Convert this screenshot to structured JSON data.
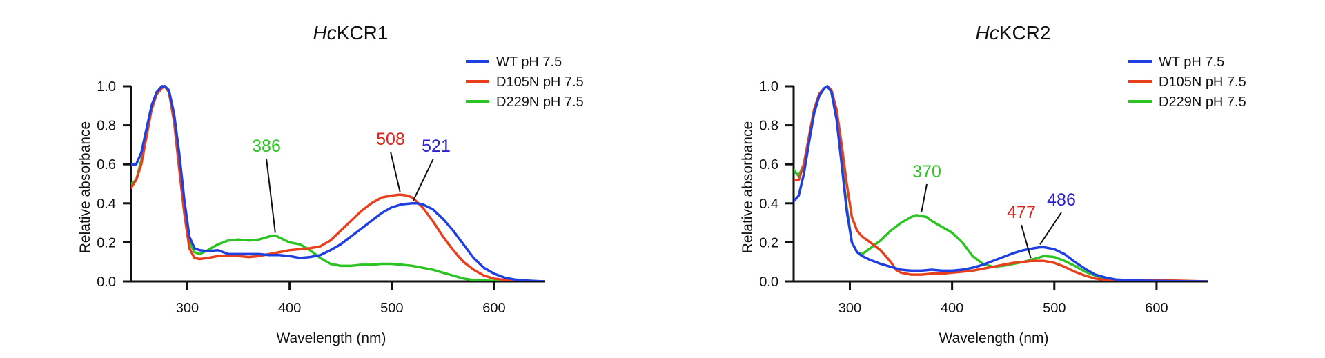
{
  "chart_data": [
    {
      "type": "line",
      "title_italic": "Hc",
      "title_rest": "KCR1",
      "xlabel": "Wavelength (nm)",
      "ylabel": "Relative absorbance",
      "xlim": [
        245,
        650
      ],
      "ylim": [
        0,
        1.0
      ],
      "xticks": [
        300,
        400,
        500,
        600
      ],
      "yticks": [
        0.0,
        0.2,
        0.4,
        0.6,
        0.8,
        1.0
      ],
      "xtick_labels": [
        "300",
        "400",
        "500",
        "600"
      ],
      "ytick_labels": [
        "0.0",
        "0.2",
        "0.4",
        "0.6",
        "0.8",
        "1.0"
      ],
      "legend_position": "top-right",
      "series": [
        {
          "name": "WT pH 7.5",
          "color": "#1f3fe0",
          "x": [
            245,
            250,
            255,
            260,
            265,
            270,
            275,
            278,
            282,
            287,
            292,
            297,
            302,
            307,
            312,
            320,
            330,
            340,
            350,
            360,
            370,
            380,
            390,
            400,
            410,
            420,
            430,
            440,
            450,
            460,
            470,
            480,
            490,
            500,
            510,
            520,
            525,
            530,
            540,
            550,
            560,
            570,
            580,
            590,
            600,
            610,
            620,
            630,
            640,
            650
          ],
          "y": [
            0.6,
            0.6,
            0.66,
            0.78,
            0.9,
            0.97,
            1.0,
            1.0,
            0.98,
            0.86,
            0.66,
            0.42,
            0.23,
            0.17,
            0.16,
            0.155,
            0.16,
            0.14,
            0.14,
            0.14,
            0.14,
            0.135,
            0.135,
            0.13,
            0.12,
            0.125,
            0.135,
            0.16,
            0.19,
            0.23,
            0.27,
            0.31,
            0.35,
            0.38,
            0.395,
            0.4,
            0.4,
            0.395,
            0.37,
            0.32,
            0.26,
            0.19,
            0.12,
            0.07,
            0.04,
            0.02,
            0.01,
            0.005,
            0.002,
            0.0
          ]
        },
        {
          "name": "D105N pH 7.5",
          "color": "#e8401c",
          "x": [
            245,
            250,
            255,
            260,
            265,
            270,
            275,
            278,
            282,
            287,
            292,
            297,
            302,
            307,
            312,
            320,
            330,
            340,
            350,
            360,
            370,
            380,
            390,
            400,
            410,
            420,
            430,
            440,
            450,
            460,
            470,
            480,
            490,
            500,
            508,
            515,
            520,
            530,
            540,
            550,
            560,
            570,
            580,
            590,
            600,
            610,
            620,
            630,
            650
          ],
          "y": [
            0.48,
            0.52,
            0.6,
            0.74,
            0.88,
            0.96,
            0.99,
            1.0,
            0.97,
            0.82,
            0.58,
            0.35,
            0.17,
            0.12,
            0.115,
            0.12,
            0.13,
            0.13,
            0.13,
            0.125,
            0.13,
            0.14,
            0.15,
            0.16,
            0.165,
            0.17,
            0.18,
            0.21,
            0.26,
            0.31,
            0.36,
            0.4,
            0.43,
            0.44,
            0.445,
            0.44,
            0.43,
            0.38,
            0.31,
            0.23,
            0.16,
            0.1,
            0.06,
            0.03,
            0.015,
            0.008,
            0.004,
            0.002,
            0.0
          ]
        },
        {
          "name": "D229N pH 7.5",
          "color": "#2cc423",
          "x": [
            245,
            250,
            255,
            260,
            265,
            270,
            275,
            278,
            282,
            287,
            292,
            297,
            302,
            307,
            312,
            320,
            330,
            340,
            350,
            360,
            370,
            380,
            386,
            390,
            400,
            410,
            420,
            430,
            440,
            450,
            460,
            470,
            480,
            490,
            500,
            510,
            520,
            530,
            540,
            550,
            560,
            570,
            580,
            600,
            620,
            650
          ],
          "y": [
            0.5,
            0.52,
            0.62,
            0.76,
            0.89,
            0.96,
            0.99,
            1.0,
            0.97,
            0.84,
            0.62,
            0.38,
            0.2,
            0.15,
            0.14,
            0.16,
            0.19,
            0.21,
            0.215,
            0.21,
            0.215,
            0.23,
            0.235,
            0.225,
            0.2,
            0.19,
            0.16,
            0.12,
            0.09,
            0.08,
            0.08,
            0.085,
            0.085,
            0.09,
            0.09,
            0.085,
            0.08,
            0.07,
            0.06,
            0.045,
            0.03,
            0.015,
            0.007,
            0.003,
            0.001,
            0.0
          ]
        }
      ],
      "annotations": [
        {
          "text": "386",
          "color": "#2cc423",
          "x": 386,
          "y": 0.235
        },
        {
          "text": "508",
          "color": "#d9261c",
          "x": 508,
          "y": 0.445
        },
        {
          "text": "521",
          "color": "#2a1fc9",
          "x": 521,
          "y": 0.4
        }
      ]
    },
    {
      "type": "line",
      "title_italic": "Hc",
      "title_rest": "KCR2",
      "xlabel": "Wavelength (nm)",
      "ylabel": "Relative absorbance",
      "xlim": [
        245,
        650
      ],
      "ylim": [
        0,
        1.0
      ],
      "xticks": [
        300,
        400,
        500,
        600
      ],
      "yticks": [
        0.0,
        0.2,
        0.4,
        0.6,
        0.8,
        1.0
      ],
      "xtick_labels": [
        "300",
        "400",
        "500",
        "600"
      ],
      "ytick_labels": [
        "0.0",
        "0.2",
        "0.4",
        "0.6",
        "0.8",
        "1.0"
      ],
      "legend_position": "top-right",
      "series": [
        {
          "name": "WT pH 7.5",
          "color": "#1f3fe0",
          "x": [
            245,
            250,
            255,
            260,
            265,
            270,
            275,
            278,
            282,
            287,
            292,
            297,
            302,
            307,
            312,
            320,
            330,
            340,
            350,
            360,
            370,
            380,
            390,
            400,
            410,
            420,
            430,
            440,
            450,
            460,
            470,
            480,
            486,
            490,
            500,
            510,
            520,
            530,
            540,
            550,
            560,
            580,
            600,
            620,
            650
          ],
          "y": [
            0.41,
            0.44,
            0.55,
            0.71,
            0.86,
            0.95,
            0.99,
            1.0,
            0.97,
            0.83,
            0.6,
            0.36,
            0.2,
            0.15,
            0.13,
            0.11,
            0.09,
            0.075,
            0.06,
            0.055,
            0.055,
            0.06,
            0.055,
            0.055,
            0.06,
            0.07,
            0.085,
            0.105,
            0.125,
            0.145,
            0.16,
            0.17,
            0.175,
            0.175,
            0.165,
            0.14,
            0.1,
            0.065,
            0.035,
            0.02,
            0.01,
            0.005,
            0.003,
            0.001,
            0.0
          ]
        },
        {
          "name": "D105N pH 7.5",
          "color": "#e8401c",
          "x": [
            245,
            250,
            255,
            260,
            265,
            270,
            275,
            278,
            282,
            287,
            292,
            297,
            302,
            307,
            312,
            320,
            330,
            340,
            345,
            350,
            360,
            370,
            380,
            390,
            400,
            410,
            420,
            430,
            440,
            450,
            460,
            470,
            477,
            480,
            490,
            500,
            510,
            520,
            530,
            540,
            550,
            560,
            580,
            600,
            620,
            650
          ],
          "y": [
            0.52,
            0.52,
            0.6,
            0.74,
            0.88,
            0.96,
            0.99,
            1.0,
            0.98,
            0.88,
            0.7,
            0.5,
            0.33,
            0.26,
            0.23,
            0.2,
            0.16,
            0.1,
            0.06,
            0.045,
            0.035,
            0.035,
            0.04,
            0.04,
            0.045,
            0.05,
            0.055,
            0.065,
            0.075,
            0.085,
            0.095,
            0.1,
            0.105,
            0.105,
            0.105,
            0.095,
            0.075,
            0.05,
            0.03,
            0.015,
            0.008,
            0.005,
            0.003,
            0.006,
            0.004,
            0.0
          ]
        },
        {
          "name": "D229N pH 7.5",
          "color": "#2cc423",
          "x": [
            245,
            250,
            255,
            260,
            265,
            270,
            275,
            278,
            282,
            287,
            292,
            297,
            302,
            307,
            312,
            320,
            330,
            340,
            350,
            360,
            365,
            370,
            375,
            380,
            390,
            400,
            410,
            420,
            430,
            440,
            450,
            460,
            470,
            480,
            490,
            500,
            510,
            520,
            530,
            540,
            550,
            560,
            580,
            600,
            620,
            650
          ],
          "y": [
            0.57,
            0.54,
            0.6,
            0.74,
            0.88,
            0.96,
            0.99,
            1.0,
            0.97,
            0.84,
            0.62,
            0.38,
            0.2,
            0.15,
            0.14,
            0.17,
            0.21,
            0.26,
            0.3,
            0.33,
            0.34,
            0.335,
            0.33,
            0.31,
            0.28,
            0.25,
            0.2,
            0.13,
            0.09,
            0.075,
            0.08,
            0.09,
            0.1,
            0.115,
            0.13,
            0.125,
            0.105,
            0.08,
            0.05,
            0.03,
            0.015,
            0.008,
            0.003,
            0.001,
            0.0,
            0.0
          ]
        }
      ],
      "annotations": [
        {
          "text": "370",
          "color": "#2cc423",
          "x": 370,
          "y": 0.34
        },
        {
          "text": "477",
          "color": "#d9261c",
          "x": 477,
          "y": 0.105
        },
        {
          "text": "486",
          "color": "#2a1fc9",
          "x": 486,
          "y": 0.175
        }
      ]
    }
  ]
}
